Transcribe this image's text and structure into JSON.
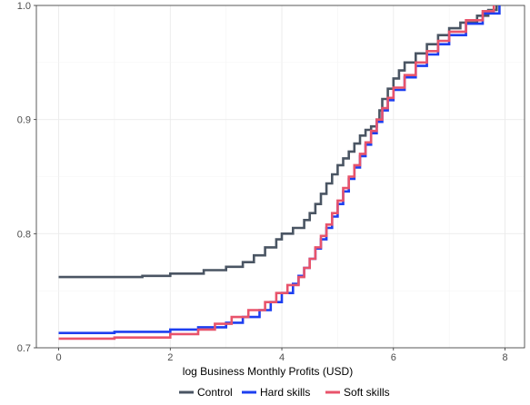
{
  "chart_data": {
    "type": "line",
    "step": true,
    "title": "",
    "xlabel": "log Business Monthly Profits (USD)",
    "ylabel": "",
    "xlim": [
      -0.4,
      8.35
    ],
    "ylim": [
      0.7,
      1.0
    ],
    "x_ticks": [
      0,
      2,
      4,
      6,
      8
    ],
    "x_tick_labels": [
      "0",
      "2",
      "4",
      "6",
      "8"
    ],
    "y_ticks": [
      0.7,
      0.8,
      0.9,
      1.0
    ],
    "y_tick_labels": [
      "0.7",
      "0.8",
      "0.9",
      "1.0"
    ],
    "grid": true,
    "legend_position": "bottom",
    "series": [
      {
        "name": "Control",
        "color": "#4a5563",
        "x": [
          0,
          1.5,
          2.0,
          2.6,
          3.0,
          3.3,
          3.5,
          3.7,
          3.9,
          4.0,
          4.2,
          4.4,
          4.5,
          4.6,
          4.7,
          4.8,
          4.9,
          5.0,
          5.1,
          5.2,
          5.3,
          5.4,
          5.5,
          5.6,
          5.7,
          5.75,
          5.8,
          5.9,
          6.0,
          6.1,
          6.2,
          6.4,
          6.6,
          6.8,
          7.0,
          7.2,
          7.5,
          7.7,
          7.85
        ],
        "y": [
          0.762,
          0.763,
          0.765,
          0.768,
          0.771,
          0.775,
          0.781,
          0.788,
          0.795,
          0.8,
          0.805,
          0.812,
          0.818,
          0.826,
          0.835,
          0.844,
          0.852,
          0.86,
          0.866,
          0.872,
          0.879,
          0.886,
          0.891,
          0.894,
          0.9,
          0.908,
          0.918,
          0.927,
          0.936,
          0.943,
          0.95,
          0.958,
          0.966,
          0.974,
          0.98,
          0.985,
          0.991,
          0.996,
          1.0
        ]
      },
      {
        "name": "Hard skills",
        "color": "#1d3ff0",
        "x": [
          0,
          1.0,
          2.0,
          2.5,
          3.0,
          3.3,
          3.6,
          3.8,
          4.0,
          4.2,
          4.3,
          4.4,
          4.5,
          4.6,
          4.7,
          4.8,
          4.9,
          5.0,
          5.1,
          5.2,
          5.3,
          5.4,
          5.5,
          5.6,
          5.7,
          5.8,
          5.9,
          6.0,
          6.2,
          6.4,
          6.6,
          6.8,
          7.0,
          7.3,
          7.6,
          7.9
        ],
        "y": [
          0.713,
          0.714,
          0.716,
          0.718,
          0.722,
          0.727,
          0.733,
          0.74,
          0.748,
          0.756,
          0.763,
          0.77,
          0.778,
          0.787,
          0.795,
          0.805,
          0.815,
          0.826,
          0.837,
          0.848,
          0.858,
          0.868,
          0.878,
          0.888,
          0.898,
          0.908,
          0.917,
          0.926,
          0.937,
          0.947,
          0.957,
          0.966,
          0.974,
          0.984,
          0.993,
          1.0
        ]
      },
      {
        "name": "Soft skills",
        "color": "#e8536b",
        "x": [
          0,
          1.0,
          2.0,
          2.5,
          2.8,
          3.1,
          3.4,
          3.7,
          3.9,
          4.1,
          4.3,
          4.4,
          4.5,
          4.6,
          4.7,
          4.8,
          4.9,
          5.0,
          5.1,
          5.2,
          5.3,
          5.4,
          5.5,
          5.6,
          5.7,
          5.8,
          5.9,
          6.0,
          6.2,
          6.4,
          6.6,
          6.8,
          7.0,
          7.3,
          7.6,
          7.8
        ],
        "y": [
          0.708,
          0.709,
          0.712,
          0.716,
          0.721,
          0.727,
          0.733,
          0.74,
          0.748,
          0.755,
          0.762,
          0.77,
          0.778,
          0.788,
          0.798,
          0.808,
          0.818,
          0.829,
          0.84,
          0.85,
          0.86,
          0.87,
          0.88,
          0.89,
          0.9,
          0.91,
          0.919,
          0.928,
          0.939,
          0.95,
          0.96,
          0.969,
          0.977,
          0.987,
          0.995,
          1.0
        ]
      }
    ]
  }
}
